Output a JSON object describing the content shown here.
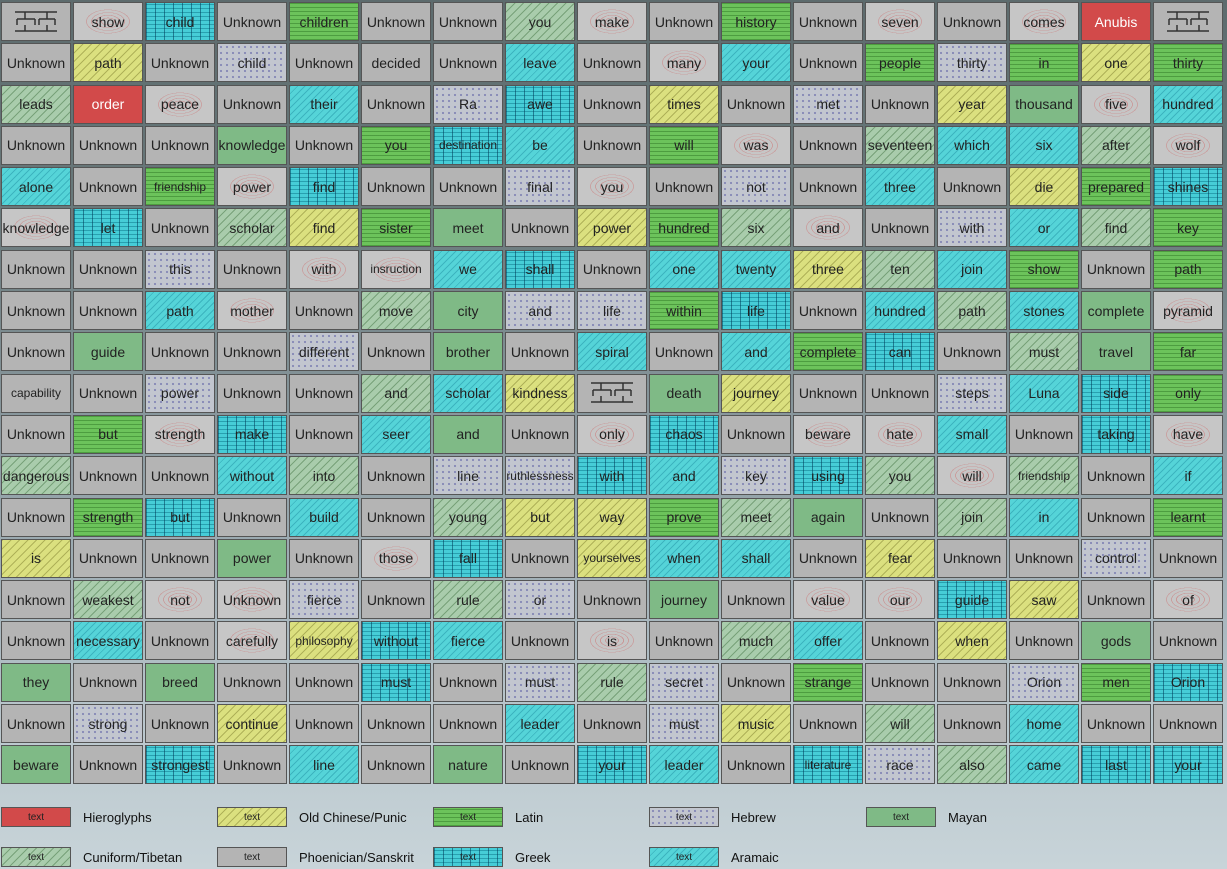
{
  "grid": {
    "rows": [
      [
        [
          "glyph",
          "u"
        ],
        [
          "show",
          "phx"
        ],
        [
          "child",
          "gre"
        ],
        [
          "Unknown",
          "u"
        ],
        [
          "children",
          "lat"
        ],
        [
          "Unknown",
          "u"
        ],
        [
          "Unknown",
          "u"
        ],
        [
          "you",
          "cun"
        ],
        [
          "make",
          "phx"
        ],
        [
          "Unknown",
          "u"
        ],
        [
          "history",
          "lat"
        ],
        [
          "Unknown",
          "u"
        ],
        [
          "seven",
          "phx"
        ],
        [
          "Unknown",
          "u"
        ],
        [
          "comes",
          "phx"
        ],
        [
          "Anubis",
          "hie"
        ],
        [
          "glyph",
          "u"
        ]
      ],
      [
        [
          "Unknown",
          "u"
        ],
        [
          "path",
          "chi"
        ],
        [
          "Unknown",
          "u"
        ],
        [
          "child",
          "heb"
        ],
        [
          "Unknown",
          "u"
        ],
        [
          "decided",
          "u"
        ],
        [
          "Unknown",
          "u"
        ],
        [
          "leave",
          "ara"
        ],
        [
          "Unknown",
          "u"
        ],
        [
          "many",
          "phx"
        ],
        [
          "your",
          "ara"
        ],
        [
          "Unknown",
          "u"
        ],
        [
          "people",
          "lat"
        ],
        [
          "thirty",
          "heb"
        ],
        [
          "in",
          "lat"
        ],
        [
          "one",
          "chi"
        ],
        [
          "thirty",
          "lat"
        ]
      ],
      [
        [
          "leads",
          "cun"
        ],
        [
          "order",
          "hie"
        ],
        [
          "peace",
          "phx"
        ],
        [
          "Unknown",
          "u"
        ],
        [
          "their",
          "ara"
        ],
        [
          "Unknown",
          "u"
        ],
        [
          "Ra",
          "heb"
        ],
        [
          "awe",
          "gre"
        ],
        [
          "Unknown",
          "u"
        ],
        [
          "times",
          "chi"
        ],
        [
          "Unknown",
          "u"
        ],
        [
          "met",
          "heb"
        ],
        [
          "Unknown",
          "u"
        ],
        [
          "year",
          "chi"
        ],
        [
          "thousand",
          "may"
        ],
        [
          "five",
          "phx"
        ],
        [
          "hundred",
          "ara"
        ]
      ],
      [
        [
          "Unknown",
          "u"
        ],
        [
          "Unknown",
          "u"
        ],
        [
          "Unknown",
          "u"
        ],
        [
          "knowledge",
          "may"
        ],
        [
          "Unknown",
          "u"
        ],
        [
          "you",
          "lat"
        ],
        [
          "destination",
          "gre"
        ],
        [
          "be",
          "ara"
        ],
        [
          "Unknown",
          "u"
        ],
        [
          "will",
          "lat"
        ],
        [
          "was",
          "phx"
        ],
        [
          "Unknown",
          "u"
        ],
        [
          "seventeen",
          "cun"
        ],
        [
          "which",
          "ara"
        ],
        [
          "six",
          "ara"
        ],
        [
          "after",
          "cun"
        ],
        [
          "wolf",
          "phx"
        ]
      ],
      [
        [
          "alone",
          "ara"
        ],
        [
          "Unknown",
          "u"
        ],
        [
          "friendship",
          "lat"
        ],
        [
          "power",
          "phx"
        ],
        [
          "find",
          "gre"
        ],
        [
          "Unknown",
          "u"
        ],
        [
          "Unknown",
          "u"
        ],
        [
          "final",
          "heb"
        ],
        [
          "you",
          "phx"
        ],
        [
          "Unknown",
          "u"
        ],
        [
          "not",
          "heb"
        ],
        [
          "Unknown",
          "u"
        ],
        [
          "three",
          "ara"
        ],
        [
          "Unknown",
          "u"
        ],
        [
          "die",
          "chi"
        ],
        [
          "prepared",
          "lat"
        ],
        [
          "shines",
          "gre"
        ]
      ],
      [
        [
          "knowledge",
          "phx"
        ],
        [
          "let",
          "gre"
        ],
        [
          "Unknown",
          "u"
        ],
        [
          "scholar",
          "cun"
        ],
        [
          "find",
          "chi"
        ],
        [
          "sister",
          "lat"
        ],
        [
          "meet",
          "may"
        ],
        [
          "Unknown",
          "u"
        ],
        [
          "power",
          "chi"
        ],
        [
          "hundred",
          "lat"
        ],
        [
          "six",
          "cun"
        ],
        [
          "and",
          "phx"
        ],
        [
          "Unknown",
          "u"
        ],
        [
          "with",
          "heb"
        ],
        [
          "or",
          "ara"
        ],
        [
          "find",
          "cun"
        ],
        [
          "key",
          "lat"
        ]
      ],
      [
        [
          "Unknown",
          "u"
        ],
        [
          "Unknown",
          "u"
        ],
        [
          "this",
          "heb"
        ],
        [
          "Unknown",
          "u"
        ],
        [
          "with",
          "phx"
        ],
        [
          "insruction",
          "phx"
        ],
        [
          "we",
          "ara"
        ],
        [
          "shall",
          "gre"
        ],
        [
          "Unknown",
          "u"
        ],
        [
          "one",
          "ara"
        ],
        [
          "twenty",
          "ara"
        ],
        [
          "three",
          "chi"
        ],
        [
          "ten",
          "cun"
        ],
        [
          "join",
          "ara"
        ],
        [
          "show",
          "lat"
        ],
        [
          "Unknown",
          "u"
        ],
        [
          "path",
          "lat"
        ]
      ],
      [
        [
          "Unknown",
          "u"
        ],
        [
          "Unknown",
          "u"
        ],
        [
          "path",
          "ara"
        ],
        [
          "mother",
          "phx"
        ],
        [
          "Unknown",
          "u"
        ],
        [
          "move",
          "cun"
        ],
        [
          "city",
          "may"
        ],
        [
          "and",
          "heb"
        ],
        [
          "life",
          "heb"
        ],
        [
          "within",
          "lat"
        ],
        [
          "life",
          "gre"
        ],
        [
          "Unknown",
          "u"
        ],
        [
          "hundred",
          "ara"
        ],
        [
          "path",
          "cun"
        ],
        [
          "stones",
          "ara"
        ],
        [
          "complete",
          "may"
        ],
        [
          "pyramid",
          "phx"
        ]
      ],
      [
        [
          "Unknown",
          "u"
        ],
        [
          "guide",
          "may"
        ],
        [
          "Unknown",
          "u"
        ],
        [
          "Unknown",
          "u"
        ],
        [
          "different",
          "heb"
        ],
        [
          "Unknown",
          "u"
        ],
        [
          "brother",
          "may"
        ],
        [
          "Unknown",
          "u"
        ],
        [
          "spiral",
          "ara"
        ],
        [
          "Unknown",
          "u"
        ],
        [
          "and",
          "ara"
        ],
        [
          "complete",
          "lat"
        ],
        [
          "can",
          "gre"
        ],
        [
          "Unknown",
          "u"
        ],
        [
          "must",
          "cun"
        ],
        [
          "travel",
          "may"
        ],
        [
          "far",
          "lat"
        ]
      ],
      [
        [
          "capability",
          "u"
        ],
        [
          "Unknown",
          "u"
        ],
        [
          "power",
          "heb"
        ],
        [
          "Unknown",
          "u"
        ],
        [
          "Unknown",
          "u"
        ],
        [
          "and",
          "cun"
        ],
        [
          "scholar",
          "ara"
        ],
        [
          "kindness",
          "chi"
        ],
        [
          "glyph",
          "u"
        ],
        [
          "death",
          "may"
        ],
        [
          "journey",
          "chi"
        ],
        [
          "Unknown",
          "u"
        ],
        [
          "Unknown",
          "u"
        ],
        [
          "steps",
          "heb"
        ],
        [
          "Luna",
          "ara"
        ],
        [
          "side",
          "gre"
        ],
        [
          "only",
          "lat"
        ]
      ],
      [
        [
          "Unknown",
          "u"
        ],
        [
          "but",
          "lat"
        ],
        [
          "strength",
          "phx"
        ],
        [
          "make",
          "gre"
        ],
        [
          "Unknown",
          "u"
        ],
        [
          "seer",
          "ara"
        ],
        [
          "and",
          "may"
        ],
        [
          "Unknown",
          "u"
        ],
        [
          "only",
          "phx"
        ],
        [
          "chaos",
          "gre"
        ],
        [
          "Unknown",
          "u"
        ],
        [
          "beware",
          "phx"
        ],
        [
          "hate",
          "phx"
        ],
        [
          "small",
          "ara"
        ],
        [
          "Unknown",
          "u"
        ],
        [
          "taking",
          "gre"
        ],
        [
          "have",
          "phx"
        ]
      ],
      [
        [
          "dangerous",
          "cun"
        ],
        [
          "Unknown",
          "u"
        ],
        [
          "Unknown",
          "u"
        ],
        [
          "without",
          "ara"
        ],
        [
          "into",
          "cun"
        ],
        [
          "Unknown",
          "u"
        ],
        [
          "line",
          "heb"
        ],
        [
          "ruthlessness",
          "heb"
        ],
        [
          "with",
          "gre"
        ],
        [
          "and",
          "ara"
        ],
        [
          "key",
          "heb"
        ],
        [
          "using",
          "gre"
        ],
        [
          "you",
          "cun"
        ],
        [
          "will",
          "phx"
        ],
        [
          "friendship",
          "cun"
        ],
        [
          "Unknown",
          "u"
        ],
        [
          "if",
          "ara"
        ]
      ],
      [
        [
          "Unknown",
          "u"
        ],
        [
          "strength",
          "lat"
        ],
        [
          "but",
          "gre"
        ],
        [
          "Unknown",
          "u"
        ],
        [
          "build",
          "ara"
        ],
        [
          "Unknown",
          "u"
        ],
        [
          "young",
          "cun"
        ],
        [
          "but",
          "chi"
        ],
        [
          "way",
          "chi"
        ],
        [
          "prove",
          "lat"
        ],
        [
          "meet",
          "cun"
        ],
        [
          "again",
          "may"
        ],
        [
          "Unknown",
          "u"
        ],
        [
          "join",
          "cun"
        ],
        [
          "in",
          "ara"
        ],
        [
          "Unknown",
          "u"
        ],
        [
          "learnt",
          "lat"
        ]
      ],
      [
        [
          "is",
          "chi"
        ],
        [
          "Unknown",
          "u"
        ],
        [
          "Unknown",
          "u"
        ],
        [
          "power",
          "may"
        ],
        [
          "Unknown",
          "u"
        ],
        [
          "those",
          "phx"
        ],
        [
          "fall",
          "gre"
        ],
        [
          "Unknown",
          "u"
        ],
        [
          "yourselves",
          "chi"
        ],
        [
          "when",
          "ara"
        ],
        [
          "shall",
          "ara"
        ],
        [
          "Unknown",
          "u"
        ],
        [
          "fear",
          "chi"
        ],
        [
          "Unknown",
          "u"
        ],
        [
          "Unknown",
          "u"
        ],
        [
          "control",
          "heb"
        ],
        [
          "Unknown",
          "u"
        ]
      ],
      [
        [
          "Unknown",
          "u"
        ],
        [
          "weakest",
          "cun"
        ],
        [
          "not",
          "phx"
        ],
        [
          "Unknown",
          "phx"
        ],
        [
          "fierce",
          "heb"
        ],
        [
          "Unknown",
          "u"
        ],
        [
          "rule",
          "cun"
        ],
        [
          "or",
          "heb"
        ],
        [
          "Unknown",
          "u"
        ],
        [
          "journey",
          "may"
        ],
        [
          "Unknown",
          "u"
        ],
        [
          "value",
          "phx"
        ],
        [
          "our",
          "phx"
        ],
        [
          "guide",
          "gre"
        ],
        [
          "saw",
          "chi"
        ],
        [
          "Unknown",
          "u"
        ],
        [
          "of",
          "phx"
        ]
      ],
      [
        [
          "Unknown",
          "u"
        ],
        [
          "necessary",
          "ara"
        ],
        [
          "Unknown",
          "u"
        ],
        [
          "carefully",
          "phx"
        ],
        [
          "philosophy",
          "chi"
        ],
        [
          "without",
          "gre"
        ],
        [
          "fierce",
          "ara"
        ],
        [
          "Unknown",
          "u"
        ],
        [
          "is",
          "phx"
        ],
        [
          "Unknown",
          "u"
        ],
        [
          "much",
          "cun"
        ],
        [
          "offer",
          "ara"
        ],
        [
          "Unknown",
          "u"
        ],
        [
          "when",
          "chi"
        ],
        [
          "Unknown",
          "u"
        ],
        [
          "gods",
          "may"
        ],
        [
          "Unknown",
          "u"
        ]
      ],
      [
        [
          "they",
          "may"
        ],
        [
          "Unknown",
          "u"
        ],
        [
          "breed",
          "may"
        ],
        [
          "Unknown",
          "u"
        ],
        [
          "Unknown",
          "u"
        ],
        [
          "must",
          "gre"
        ],
        [
          "Unknown",
          "u"
        ],
        [
          "must",
          "heb"
        ],
        [
          "rule",
          "cun"
        ],
        [
          "secret",
          "heb"
        ],
        [
          "Unknown",
          "u"
        ],
        [
          "strange",
          "lat"
        ],
        [
          "Unknown",
          "u"
        ],
        [
          "Unknown",
          "u"
        ],
        [
          "Orion",
          "heb"
        ],
        [
          "men",
          "lat"
        ],
        [
          "Orion",
          "gre"
        ]
      ],
      [
        [
          "Unknown",
          "u"
        ],
        [
          "strong",
          "heb"
        ],
        [
          "Unknown",
          "u"
        ],
        [
          "continue",
          "chi"
        ],
        [
          "Unknown",
          "u"
        ],
        [
          "Unknown",
          "u"
        ],
        [
          "Unknown",
          "u"
        ],
        [
          "leader",
          "ara"
        ],
        [
          "Unknown",
          "u"
        ],
        [
          "must",
          "heb"
        ],
        [
          "music",
          "chi"
        ],
        [
          "Unknown",
          "u"
        ],
        [
          "will",
          "cun"
        ],
        [
          "Unknown",
          "u"
        ],
        [
          "home",
          "ara"
        ],
        [
          "Unknown",
          "u"
        ],
        [
          "Unknown",
          "u"
        ]
      ],
      [
        [
          "beware",
          "may"
        ],
        [
          "Unknown",
          "u"
        ],
        [
          "strongest",
          "gre"
        ],
        [
          "Unknown",
          "u"
        ],
        [
          "line",
          "ara"
        ],
        [
          "Unknown",
          "u"
        ],
        [
          "nature",
          "may"
        ],
        [
          "Unknown",
          "u"
        ],
        [
          "your",
          "gre"
        ],
        [
          "leader",
          "ara"
        ],
        [
          "Unknown",
          "u"
        ],
        [
          "literature",
          "gre"
        ],
        [
          "race",
          "heb"
        ],
        [
          "also",
          "cun"
        ],
        [
          "came",
          "ara"
        ],
        [
          "last",
          "gre"
        ],
        [
          "your",
          "gre"
        ]
      ]
    ]
  },
  "legend": {
    "swatch_text": "text",
    "items": [
      {
        "label": "Hieroglyphs",
        "cls": "hie"
      },
      {
        "label": "Old Chinese/Punic",
        "cls": "chi"
      },
      {
        "label": "Latin",
        "cls": "lat"
      },
      {
        "label": "Hebrew",
        "cls": "heb"
      },
      {
        "label": "Mayan",
        "cls": "may"
      },
      {
        "label": "Cuniform/Tibetan",
        "cls": "cun"
      },
      {
        "label": "Phoenician/Sanskrit",
        "cls": "u"
      },
      {
        "label": "Greek",
        "cls": "gre"
      },
      {
        "label": "Aramaic",
        "cls": "ara"
      }
    ]
  }
}
